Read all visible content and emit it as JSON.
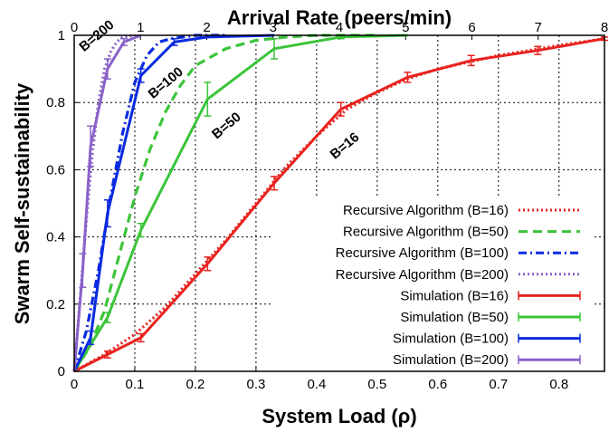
{
  "chart_data": {
    "type": "line",
    "xlabel": "System Load (ρ)",
    "x2label": "Arrival Rate (peers/min)",
    "ylabel": "Swarm Self-sustainability",
    "xlim": [
      0,
      0.875
    ],
    "ylim": [
      0,
      1
    ],
    "x2lim": [
      0,
      8
    ],
    "xticks": [
      0,
      0.1,
      0.2,
      0.3,
      0.4,
      0.5,
      0.6,
      0.7,
      0.8
    ],
    "xtick_labels": [
      "0",
      "0.1",
      "0.2",
      "0.3",
      "0.4",
      "0.5",
      "0.6",
      "0.7",
      "0.8"
    ],
    "yticks": [
      0,
      0.2,
      0.4,
      0.6,
      0.8,
      1
    ],
    "ytick_labels": [
      "0",
      "0.2",
      "0.4",
      "0.6",
      "0.8",
      "1"
    ],
    "x2ticks": [
      0,
      1,
      2,
      3,
      4,
      5,
      6,
      7,
      8
    ],
    "x2tick_labels": [
      "0",
      "1",
      "2",
      "3",
      "4",
      "5",
      "6",
      "7",
      "8"
    ],
    "grid": true,
    "legend_position": "lower-right",
    "colors": {
      "b16": "#e8231f",
      "b50": "#3cc43a",
      "b100": "#0a2be0",
      "b200": "#8a62c8"
    },
    "annotations": [
      {
        "text": "B=200",
        "x": 0.016,
        "y": 0.95
      },
      {
        "text": "B=100",
        "x": 0.13,
        "y": 0.81
      },
      {
        "text": "B=50",
        "x": 0.235,
        "y": 0.69
      },
      {
        "text": "B=16",
        "x": 0.43,
        "y": 0.63
      }
    ],
    "series": [
      {
        "name": "Recursive Algorithm (B=16)",
        "color": "#e8231f",
        "dash": "dot",
        "x": [
          0,
          0.05,
          0.1,
          0.15,
          0.2,
          0.25,
          0.3,
          0.35,
          0.4,
          0.45,
          0.5,
          0.55,
          0.6,
          0.65,
          0.7,
          0.75,
          0.8,
          0.875
        ],
        "y": [
          0,
          0.05,
          0.11,
          0.19,
          0.29,
          0.39,
          0.5,
          0.61,
          0.7,
          0.78,
          0.83,
          0.87,
          0.9,
          0.92,
          0.94,
          0.955,
          0.97,
          0.99
        ]
      },
      {
        "name": "Recursive Algorithm (B=50)",
        "color": "#3cc43a",
        "dash": "dash",
        "x": [
          0,
          0.025,
          0.05,
          0.075,
          0.1,
          0.125,
          0.15,
          0.175,
          0.2,
          0.25,
          0.3,
          0.35,
          0.4,
          0.5
        ],
        "y": [
          0,
          0.07,
          0.18,
          0.35,
          0.52,
          0.66,
          0.77,
          0.85,
          0.91,
          0.96,
          0.985,
          0.995,
          1,
          1
        ]
      },
      {
        "name": "Recursive Algorithm (B=100)",
        "color": "#0a2be0",
        "dash": "dashdot",
        "x": [
          0,
          0.02,
          0.04,
          0.06,
          0.08,
          0.1,
          0.12,
          0.14,
          0.16,
          0.2,
          0.25
        ],
        "y": [
          0,
          0.12,
          0.3,
          0.52,
          0.71,
          0.86,
          0.94,
          0.98,
          0.99,
          1,
          1
        ]
      },
      {
        "name": "Recursive Algorithm (B=200)",
        "color": "#8a62c8",
        "dash": "dot",
        "x": [
          0,
          0.01,
          0.02,
          0.03,
          0.04,
          0.05,
          0.06,
          0.07,
          0.08,
          0.1
        ],
        "y": [
          0,
          0.22,
          0.45,
          0.65,
          0.8,
          0.9,
          0.95,
          0.98,
          0.995,
          1
        ]
      },
      {
        "name": "Simulation (B=16)",
        "color": "#e8231f",
        "dash": "solid",
        "x": [
          0,
          0.055,
          0.11,
          0.22,
          0.33,
          0.44,
          0.55,
          0.655,
          0.765,
          0.875
        ],
        "y": [
          0,
          0.05,
          0.1,
          0.32,
          0.56,
          0.78,
          0.875,
          0.925,
          0.955,
          0.99
        ],
        "err": [
          0,
          0.01,
          0.012,
          0.02,
          0.02,
          0.02,
          0.015,
          0.015,
          0.012,
          0.005
        ]
      },
      {
        "name": "Simulation (B=50)",
        "color": "#3cc43a",
        "dash": "solid",
        "x": [
          0,
          0.055,
          0.11,
          0.22,
          0.33,
          0.44,
          0.55
        ],
        "y": [
          0,
          0.16,
          0.42,
          0.81,
          0.96,
          0.995,
          1
        ],
        "err": [
          0,
          0.015,
          0.02,
          0.05,
          0.03,
          0.005,
          0
        ]
      },
      {
        "name": "Simulation (B=100)",
        "color": "#0a2be0",
        "dash": "solid",
        "x": [
          0,
          0.027,
          0.055,
          0.11,
          0.165,
          0.22,
          0.33
        ],
        "y": [
          0,
          0.1,
          0.47,
          0.88,
          0.98,
          0.995,
          1
        ],
        "err": [
          0,
          0.02,
          0.04,
          0.02,
          0.01,
          0,
          0
        ]
      },
      {
        "name": "Simulation (B=200)",
        "color": "#8a62c8",
        "dash": "solid",
        "x": [
          0,
          0.014,
          0.027,
          0.055,
          0.082,
          0.11
        ],
        "y": [
          0,
          0.3,
          0.67,
          0.9,
          0.98,
          1
        ],
        "err": [
          0,
          0.05,
          0.06,
          0.03,
          0.01,
          0
        ]
      }
    ]
  }
}
